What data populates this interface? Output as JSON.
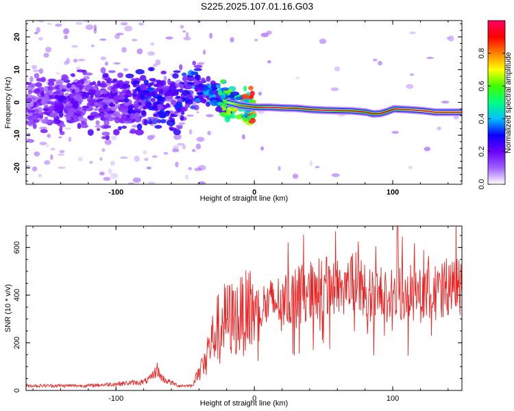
{
  "figure": {
    "title": "S225.2025.107.01.16.G03"
  },
  "chart_data": [
    {
      "type": "heatmap",
      "xlabel": "Height of straight line (km)",
      "ylabel": "Frequency (Hz)",
      "xlim": [
        -165,
        150
      ],
      "ylim": [
        -25,
        25
      ],
      "x_ticks": [
        -100,
        0,
        100
      ],
      "y_ticks": [
        -20,
        -10,
        0,
        10,
        20
      ],
      "colorbar": {
        "label": "Normalized spectral amplitude",
        "range": [
          0,
          1
        ],
        "ticks": [
          0.0,
          0.2,
          0.4,
          0.6,
          0.8
        ],
        "tick_labels": [
          "0.0",
          "0.2",
          "0.4",
          "0.6",
          "0.8"
        ],
        "colormap": [
          "#ffffff",
          "#a060ff",
          "#6a00ff",
          "#0a00ff",
          "#00c0ff",
          "#00ff80",
          "#40ff00",
          "#ffff00",
          "#ff8000",
          "#ff0000",
          "#ff0060"
        ]
      },
      "ridge": {
        "x": [
          -165,
          -140,
          -120,
          -100,
          -85,
          -75,
          -60,
          -50,
          -40,
          -30,
          -20,
          -10,
          0,
          10,
          20,
          30,
          40,
          50,
          60,
          70,
          80,
          85,
          90,
          95,
          100,
          110,
          120,
          130,
          140,
          150
        ],
        "frequency": [
          -1,
          -0.5,
          1,
          0,
          -1,
          1,
          0,
          3,
          5,
          2,
          0,
          -1,
          -1.5,
          -1.5,
          -1.7,
          -1.8,
          -2.2,
          -2.4,
          -2.5,
          -2.6,
          -3,
          -3.5,
          -3.4,
          -2.8,
          -2,
          -2.2,
          -2.5,
          -3,
          -3,
          -3
        ],
        "amplitude": [
          0.15,
          0.2,
          0.2,
          0.2,
          0.25,
          0.3,
          0.25,
          0.3,
          0.35,
          0.4,
          0.6,
          0.75,
          0.8,
          0.9,
          0.9,
          0.85,
          0.85,
          0.9,
          0.85,
          0.85,
          0.8,
          0.8,
          0.85,
          0.8,
          0.85,
          0.9,
          0.95,
          0.95,
          0.95,
          0.95
        ]
      },
      "grid": false
    },
    {
      "type": "line",
      "xlabel": "Height of straight line (km)",
      "ylabel": "SNR (10 * v/v)",
      "xlim": [
        -165,
        150
      ],
      "ylim": [
        0,
        690
      ],
      "x_ticks": [
        -100,
        0,
        100
      ],
      "y_ticks": [
        0,
        200,
        400,
        600
      ],
      "color": "#ee2020",
      "envelope_x": [
        -165,
        -120,
        -80,
        -75,
        -70,
        -68,
        -65,
        -55,
        -50,
        -45,
        -40,
        -35,
        -30,
        -25,
        -20,
        -15,
        -10,
        -5,
        0,
        10,
        20,
        30,
        40,
        50,
        60,
        70,
        75,
        80,
        85,
        90,
        95,
        100,
        105,
        110,
        120,
        130,
        140,
        150
      ],
      "envelope_y": [
        20,
        20,
        35,
        50,
        90,
        60,
        45,
        20,
        20,
        20,
        80,
        150,
        220,
        280,
        300,
        300,
        310,
        330,
        340,
        360,
        380,
        400,
        420,
        430,
        440,
        450,
        450,
        420,
        400,
        390,
        390,
        400,
        420,
        410,
        400,
        410,
        420,
        440
      ],
      "grid": false
    }
  ]
}
